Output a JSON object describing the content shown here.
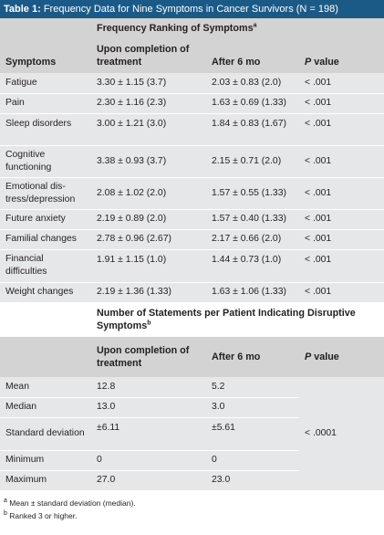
{
  "title": {
    "label": "Table 1:",
    "text": "Frequency Data for Nine Symptoms in Cancer Survivors (N = 198)"
  },
  "section1": {
    "header": "Frequency Ranking of Symptoms",
    "header_sup": "a",
    "col_symptoms": "Symptoms",
    "col_upon": "Upon completion of treatment",
    "col_after": "After 6 mo",
    "col_p": "P",
    "col_p_suffix": " value",
    "rows": [
      {
        "symptom": "Fatigue",
        "upon": "3.30 ± 1.15 (3.7)",
        "after": "2.03 ± 0.83 (2.0)",
        "p": "< .001"
      },
      {
        "symptom": "Pain",
        "upon": "2.30 ± 1.16 (2.3)",
        "after": "1.63 ± 0.69 (1.33)",
        "p": "< .001"
      },
      {
        "symptom": "Sleep disorders",
        "upon": "3.00 ± 1.21 (3.0)",
        "after": "1.84 ± 0.83 (1.67)",
        "p": "< .001"
      },
      {
        "symptom": "Cognitive functioning",
        "upon": "3.38 ± 0.93 (3.7)",
        "after": "2.15 ± 0.71 (2.0)",
        "p": "< .001"
      },
      {
        "symptom": "Emotional dis-tress/depression",
        "upon": "2.08 ± 1.02 (2.0)",
        "after": "1.57 ± 0.55 (1.33)",
        "p": "< .001"
      },
      {
        "symptom": "Future anxiety",
        "upon": "2.19 ± 0.89 (2.0)",
        "after": "1.57 ± 0.40 (1.33)",
        "p": "< .001"
      },
      {
        "symptom": "Familial changes",
        "upon": "2.78 ± 0.96 (2.67)",
        "after": "2.17 ± 0.66 (2.0)",
        "p": "< .001"
      },
      {
        "symptom": "Financial difficulties",
        "upon": "1.91 ± 1.15 (1.0)",
        "after": "1.44 ± 0.73 (1.0)",
        "p": "< .001"
      },
      {
        "symptom": "Weight changes",
        "upon": "2.19 ± 1.36 (1.33)",
        "after": "1.63 ± 1.06 (1.33)",
        "p": "< .001"
      }
    ]
  },
  "section2": {
    "header": "Number of Statements per Patient Indicating Disruptive Symptoms",
    "header_sup": "b",
    "col_upon": "Upon completion of treatment",
    "col_after": "After 6 mo",
    "col_p": "P",
    "col_p_suffix": " value",
    "p_value": "< .0001",
    "rows": [
      {
        "label": "Mean",
        "upon": "12.8",
        "after": "5.2"
      },
      {
        "label": "Median",
        "upon": "13.0",
        "after": "3.0"
      },
      {
        "label": "Standard deviation",
        "upon": "±6.11",
        "after": "±5.61"
      },
      {
        "label": "Minimum",
        "upon": "0",
        "after": "0"
      },
      {
        "label": "Maximum",
        "upon": "27.0",
        "after": "23.0"
      }
    ]
  },
  "footnotes": [
    {
      "sup": "a",
      "text": "Mean ± standard deviation (median)."
    },
    {
      "sup": "b",
      "text": "Ranked 3 or higher."
    }
  ]
}
